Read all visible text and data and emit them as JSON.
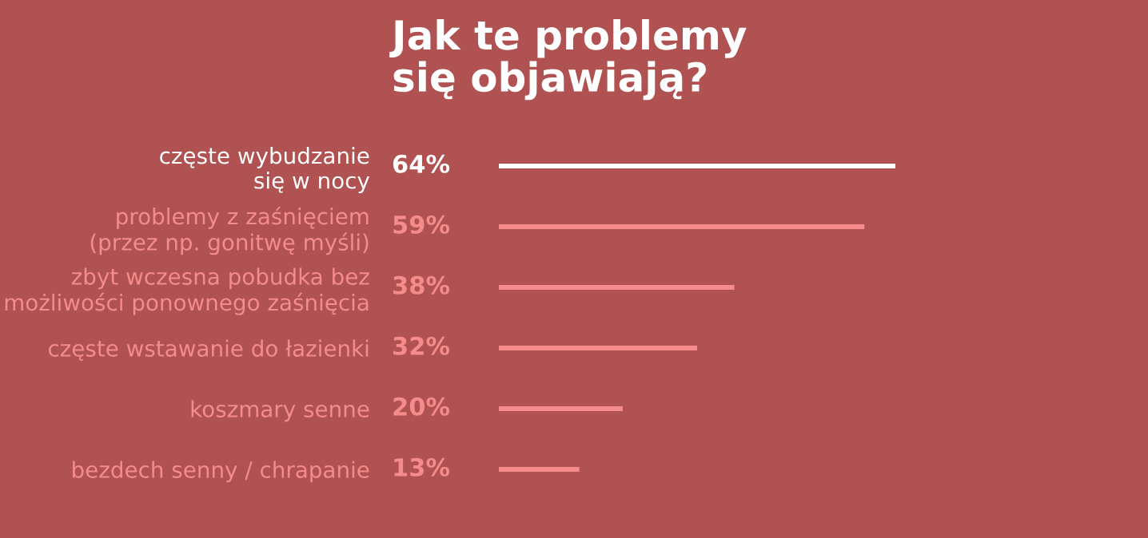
{
  "chart_data": {
    "type": "bar",
    "orientation": "horizontal",
    "title": "Jak te problemy\nsię objawiają?",
    "categories": [
      "częste wybudzanie\nsię w nocy",
      "problemy z zaśnięciem\n(przez np. gonitwę myśli)",
      "zbyt wczesna pobudka bez\nmożliwości ponownego zaśnięcia",
      "częste wstawanie do łazienki",
      "koszmary senne",
      "bezdech senny / chrapanie"
    ],
    "values": [
      64,
      59,
      38,
      32,
      20,
      13
    ],
    "colors": [
      "#ffffff",
      "#f58b8b",
      "#f58b8b",
      "#f58b8b",
      "#f58b8b",
      "#f58b8b"
    ],
    "value_labels": [
      "64%",
      "59%",
      "38%",
      "32%",
      "20%",
      "13%"
    ],
    "grid": false,
    "legend": false
  }
}
